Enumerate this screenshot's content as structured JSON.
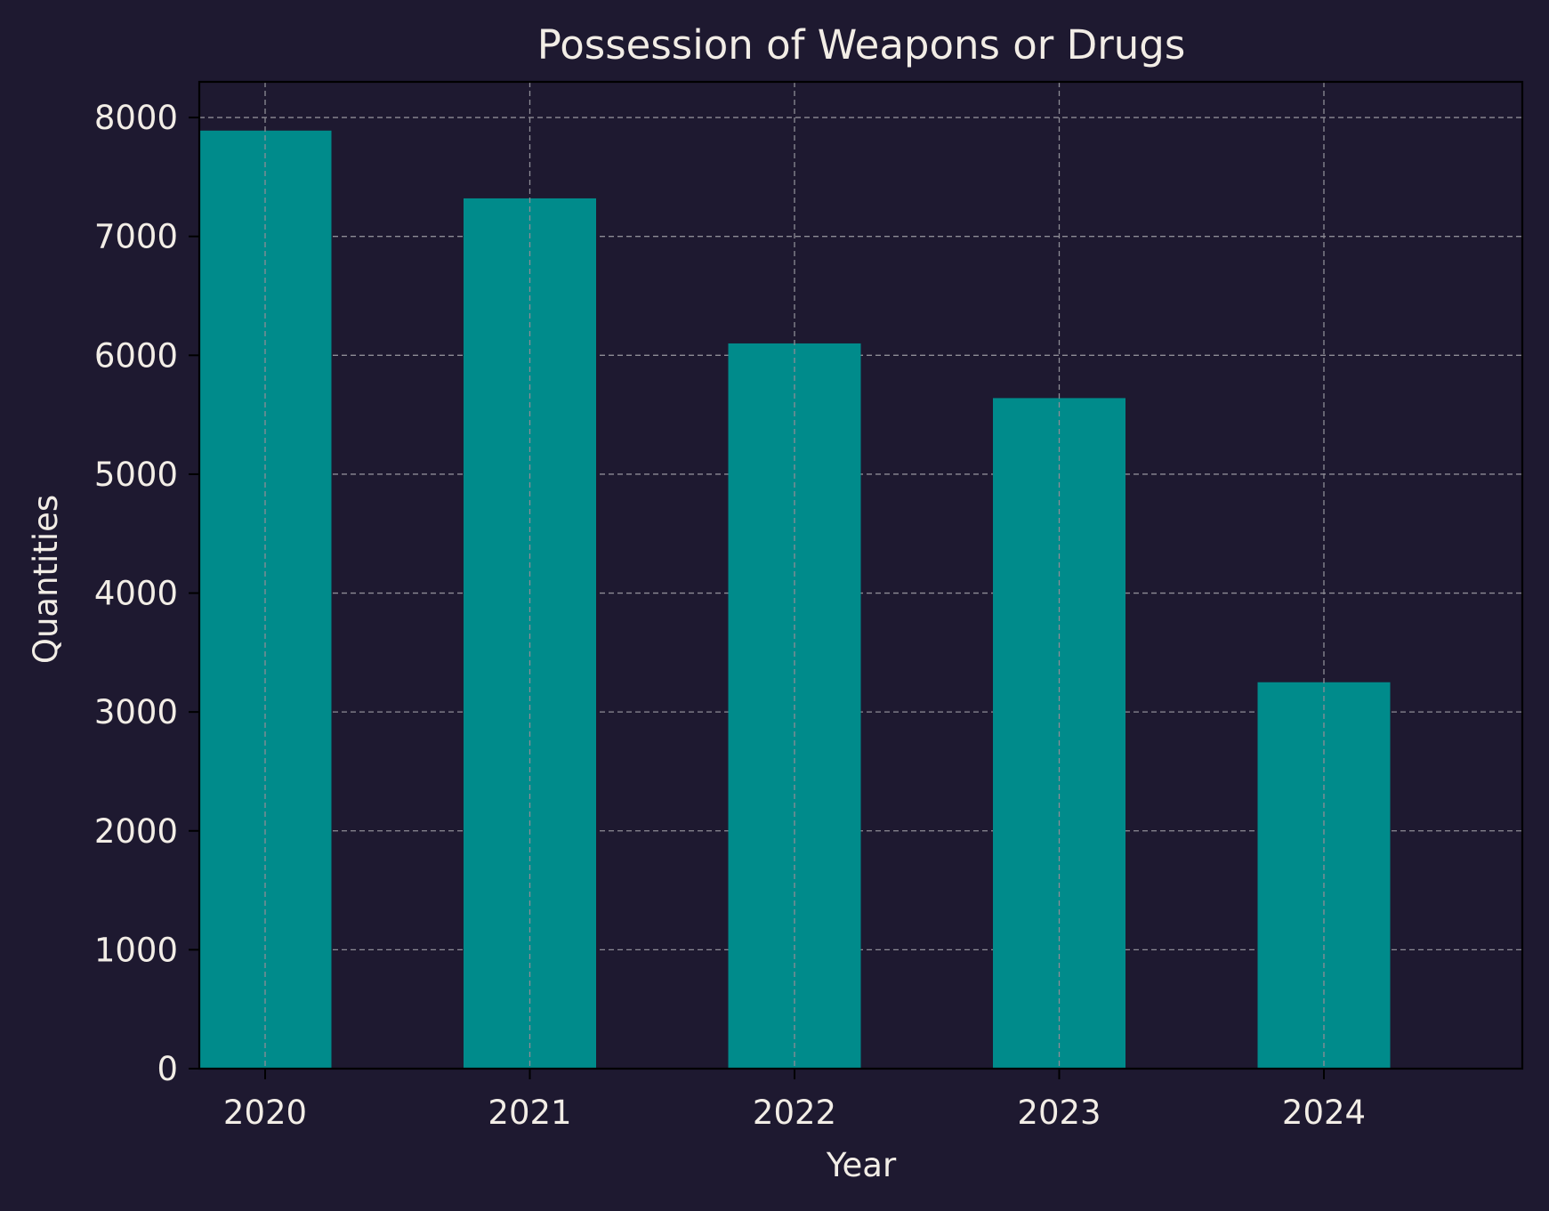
{
  "chart_data": {
    "type": "bar",
    "title": "Possession of Weapons or Drugs",
    "xlabel": "Year",
    "ylabel": "Quantities",
    "categories": [
      "2020",
      "2021",
      "2022",
      "2023",
      "2024"
    ],
    "values": [
      7890,
      7320,
      6100,
      5640,
      3250
    ],
    "ylim": [
      0,
      8300
    ],
    "yticks": [
      0,
      1000,
      2000,
      3000,
      4000,
      5000,
      6000,
      7000,
      8000
    ],
    "grid": true,
    "legend": "none",
    "colors": {
      "background": "#1e1930",
      "bar": "#008b8b",
      "text": "#f2ede6",
      "grid": "#8e8c95",
      "axis": "#000000"
    }
  }
}
